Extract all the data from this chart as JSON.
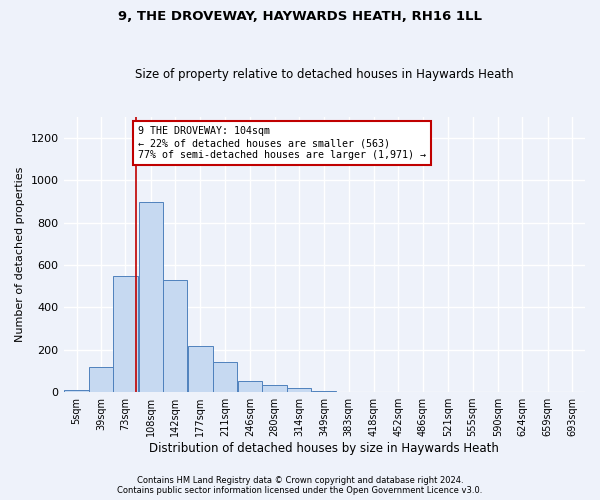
{
  "title": "9, THE DROVEWAY, HAYWARDS HEATH, RH16 1LL",
  "subtitle": "Size of property relative to detached houses in Haywards Heath",
  "xlabel": "Distribution of detached houses by size in Haywards Heath",
  "ylabel": "Number of detached properties",
  "bin_labels": [
    "5sqm",
    "39sqm",
    "73sqm",
    "108sqm",
    "142sqm",
    "177sqm",
    "211sqm",
    "246sqm",
    "280sqm",
    "314sqm",
    "349sqm",
    "383sqm",
    "418sqm",
    "452sqm",
    "486sqm",
    "521sqm",
    "555sqm",
    "590sqm",
    "624sqm",
    "659sqm",
    "693sqm"
  ],
  "bin_left_edges": [
    5,
    39,
    73,
    108,
    142,
    177,
    211,
    246,
    280,
    314,
    349,
    383,
    418,
    452,
    486,
    521,
    555,
    590,
    624,
    659,
    693
  ],
  "bin_width": 34,
  "bar_heights": [
    8,
    120,
    548,
    900,
    530,
    220,
    140,
    52,
    32,
    18,
    5,
    0,
    0,
    0,
    0,
    0,
    0,
    0,
    0,
    0,
    0
  ],
  "bar_color": "#c6d9f1",
  "bar_edge_color": "#4f81bd",
  "vline_x": 104,
  "vline_color": "#c00000",
  "ylim": [
    0,
    1300
  ],
  "yticks": [
    0,
    200,
    400,
    600,
    800,
    1000,
    1200
  ],
  "annotation_text": "9 THE DROVEWAY: 104sqm\n← 22% of detached houses are smaller (563)\n77% of semi-detached houses are larger (1,971) →",
  "annotation_box_color": "#c00000",
  "footer_line1": "Contains HM Land Registry data © Crown copyright and database right 2024.",
  "footer_line2": "Contains public sector information licensed under the Open Government Licence v3.0.",
  "background_color": "#eef2fa",
  "grid_color": "#ffffff"
}
